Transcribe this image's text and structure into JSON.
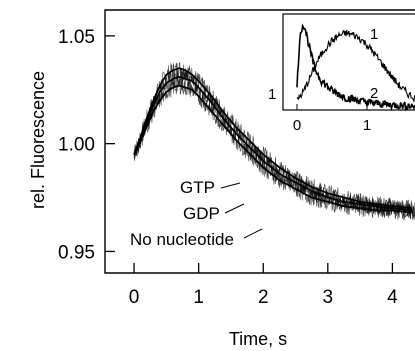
{
  "chart_data": {
    "type": "line",
    "title": "",
    "xlabel": "Time, s",
    "ylabel": "rel. Fluorescence",
    "xlim": [
      -0.45,
      4.35
    ],
    "ylim": [
      0.94,
      1.062
    ],
    "xticks": [
      0,
      1,
      2,
      3,
      4
    ],
    "yticks": [
      0.95,
      1.0,
      1.05
    ],
    "xtick_labels": [
      "0",
      "1",
      "2",
      "3",
      "4"
    ],
    "ytick_labels": [
      "0.95",
      "1.00",
      "1.05"
    ],
    "grid": false,
    "colors": {
      "line": "#000000",
      "background": "#ffffff"
    },
    "series": [
      {
        "name": "GTP",
        "x": [
          0,
          0.1,
          0.2,
          0.3,
          0.4,
          0.5,
          0.6,
          0.7,
          0.8,
          0.9,
          1.0,
          1.2,
          1.4,
          1.6,
          1.8,
          2.0,
          2.25,
          2.5,
          2.75,
          3.0,
          3.25,
          3.5,
          3.75,
          4.0,
          4.3
        ],
        "y": [
          0.995,
          1.003,
          1.012,
          1.02,
          1.027,
          1.032,
          1.034,
          1.035,
          1.034,
          1.032,
          1.029,
          1.022,
          1.014,
          1.007,
          1.001,
          0.995,
          0.989,
          0.984,
          0.98,
          0.977,
          0.975,
          0.973,
          0.972,
          0.971,
          0.97
        ]
      },
      {
        "name": "GDP",
        "x": [
          0,
          0.1,
          0.2,
          0.3,
          0.4,
          0.5,
          0.6,
          0.7,
          0.8,
          0.9,
          1.0,
          1.2,
          1.4,
          1.6,
          1.8,
          2.0,
          2.25,
          2.5,
          2.75,
          3.0,
          3.25,
          3.5,
          3.75,
          4.0,
          4.3
        ],
        "y": [
          0.995,
          1.002,
          1.01,
          1.018,
          1.024,
          1.028,
          1.03,
          1.031,
          1.03,
          1.029,
          1.026,
          1.019,
          1.011,
          1.004,
          0.998,
          0.992,
          0.986,
          0.982,
          0.978,
          0.975,
          0.973,
          0.972,
          0.971,
          0.97,
          0.969
        ]
      },
      {
        "name": "No nucleotide",
        "x": [
          0,
          0.1,
          0.2,
          0.3,
          0.4,
          0.5,
          0.6,
          0.7,
          0.8,
          0.9,
          1.0,
          1.2,
          1.4,
          1.6,
          1.8,
          2.0,
          2.25,
          2.5,
          2.75,
          3.0,
          3.25,
          3.5,
          3.75,
          4.0,
          4.3
        ],
        "y": [
          0.995,
          1.001,
          1.008,
          1.015,
          1.02,
          1.024,
          1.026,
          1.027,
          1.026,
          1.025,
          1.022,
          1.015,
          1.008,
          1.001,
          0.995,
          0.989,
          0.983,
          0.979,
          0.975,
          0.973,
          0.971,
          0.97,
          0.969,
          0.969,
          0.968
        ]
      }
    ],
    "annotations": [
      {
        "text": "GTP",
        "points_to": "GTP"
      },
      {
        "text": "GDP",
        "points_to": "GDP"
      },
      {
        "text": "No nucleotide",
        "points_to": "No nucleotide"
      }
    ],
    "inset": {
      "type": "line",
      "xlim": [
        -0.2,
        1.8
      ],
      "ylim": [
        0,
        1.25
      ],
      "xticks": [
        0,
        1
      ],
      "xtick_labels": [
        "0",
        "1"
      ],
      "ytick_labels": [
        "1"
      ],
      "series": [
        {
          "name": "1",
          "x": [
            0,
            0.1,
            0.2,
            0.3,
            0.4,
            0.5,
            0.6,
            0.7,
            0.8,
            0.9,
            1.0,
            1.1,
            1.2,
            1.3,
            1.4,
            1.5,
            1.6,
            1.7
          ],
          "y": [
            0.12,
            0.25,
            0.45,
            0.65,
            0.8,
            0.9,
            0.97,
            1.0,
            0.98,
            0.93,
            0.85,
            0.74,
            0.62,
            0.5,
            0.38,
            0.28,
            0.2,
            0.15
          ]
        },
        {
          "name": "2",
          "x": [
            0,
            0.03,
            0.06,
            0.09,
            0.12,
            0.18,
            0.25,
            0.35,
            0.5,
            0.7,
            1.0,
            1.3,
            1.5,
            1.7
          ],
          "y": [
            0.3,
            0.8,
            1.05,
            1.12,
            1.05,
            0.8,
            0.55,
            0.38,
            0.25,
            0.16,
            0.1,
            0.07,
            0.06,
            0.05
          ]
        }
      ]
    }
  }
}
